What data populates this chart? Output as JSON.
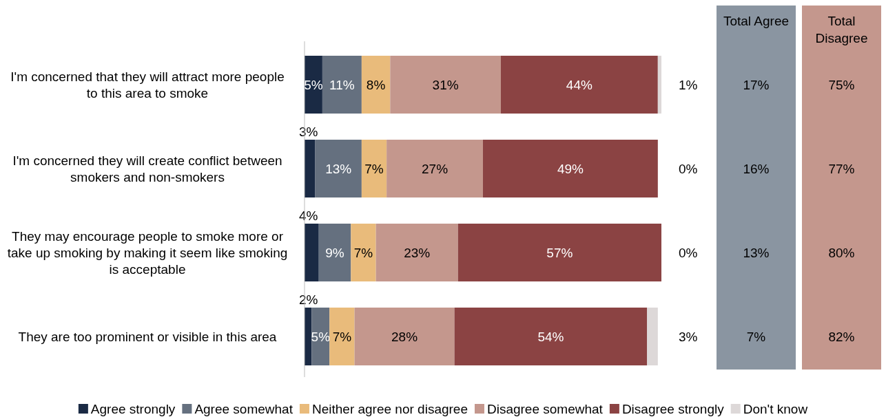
{
  "chart_data": [
    {
      "type": "bar",
      "orientation": "horizontal",
      "stacked": true,
      "legend": "bottom",
      "tick_labels": "y",
      "xlim": [
        0,
        100
      ],
      "categories": [
        "I'm concerned that they will attract more people to this area to smoke",
        "I'm concerned they will create conflict between smokers and non-smokers",
        "They may encourage people to smoke more or take up smoking by making it seem like smoking is acceptable",
        "They are too prominent or visible in this area"
      ],
      "series": [
        {
          "name": "Agree strongly",
          "color": "#1a2a44",
          "values": [
            5,
            3,
            4,
            2
          ],
          "value_labels": [
            "5%",
            "3%",
            "4%",
            "2%"
          ]
        },
        {
          "name": "Agree somewhat",
          "color": "#65707f",
          "values": [
            11,
            13,
            9,
            5
          ],
          "value_labels": [
            "11%",
            "13%",
            "9%",
            "5%"
          ]
        },
        {
          "name": "Neither agree nor disagree",
          "color": "#e9bb7b",
          "values": [
            8,
            7,
            7,
            7
          ],
          "value_labels": [
            "8%",
            "7%",
            "7%",
            "7%"
          ]
        },
        {
          "name": "Disagree somewhat",
          "color": "#c4978d",
          "values": [
            31,
            27,
            23,
            28
          ],
          "value_labels": [
            "31%",
            "27%",
            "23%",
            "28%"
          ]
        },
        {
          "name": "Disagree strongly",
          "color": "#8b4343",
          "values": [
            44,
            49,
            57,
            54
          ],
          "value_labels": [
            "44%",
            "49%",
            "57%",
            "54%"
          ]
        },
        {
          "name": "Don't know",
          "color": "#ddd8d8",
          "values": [
            1,
            0,
            0,
            3
          ],
          "value_labels": [
            "1%",
            "0%",
            "0%",
            "3%"
          ]
        }
      ]
    },
    {
      "type": "other",
      "categories": [
        "Total Agree",
        "Total Disagree"
      ],
      "colors": [
        "#8a95a1",
        "#c4978d"
      ],
      "cell_labels": [
        [
          "17%",
          "75%"
        ],
        [
          "16%",
          "77%"
        ],
        [
          "13%",
          "80%"
        ],
        [
          "7%",
          "82%"
        ]
      ]
    }
  ]
}
